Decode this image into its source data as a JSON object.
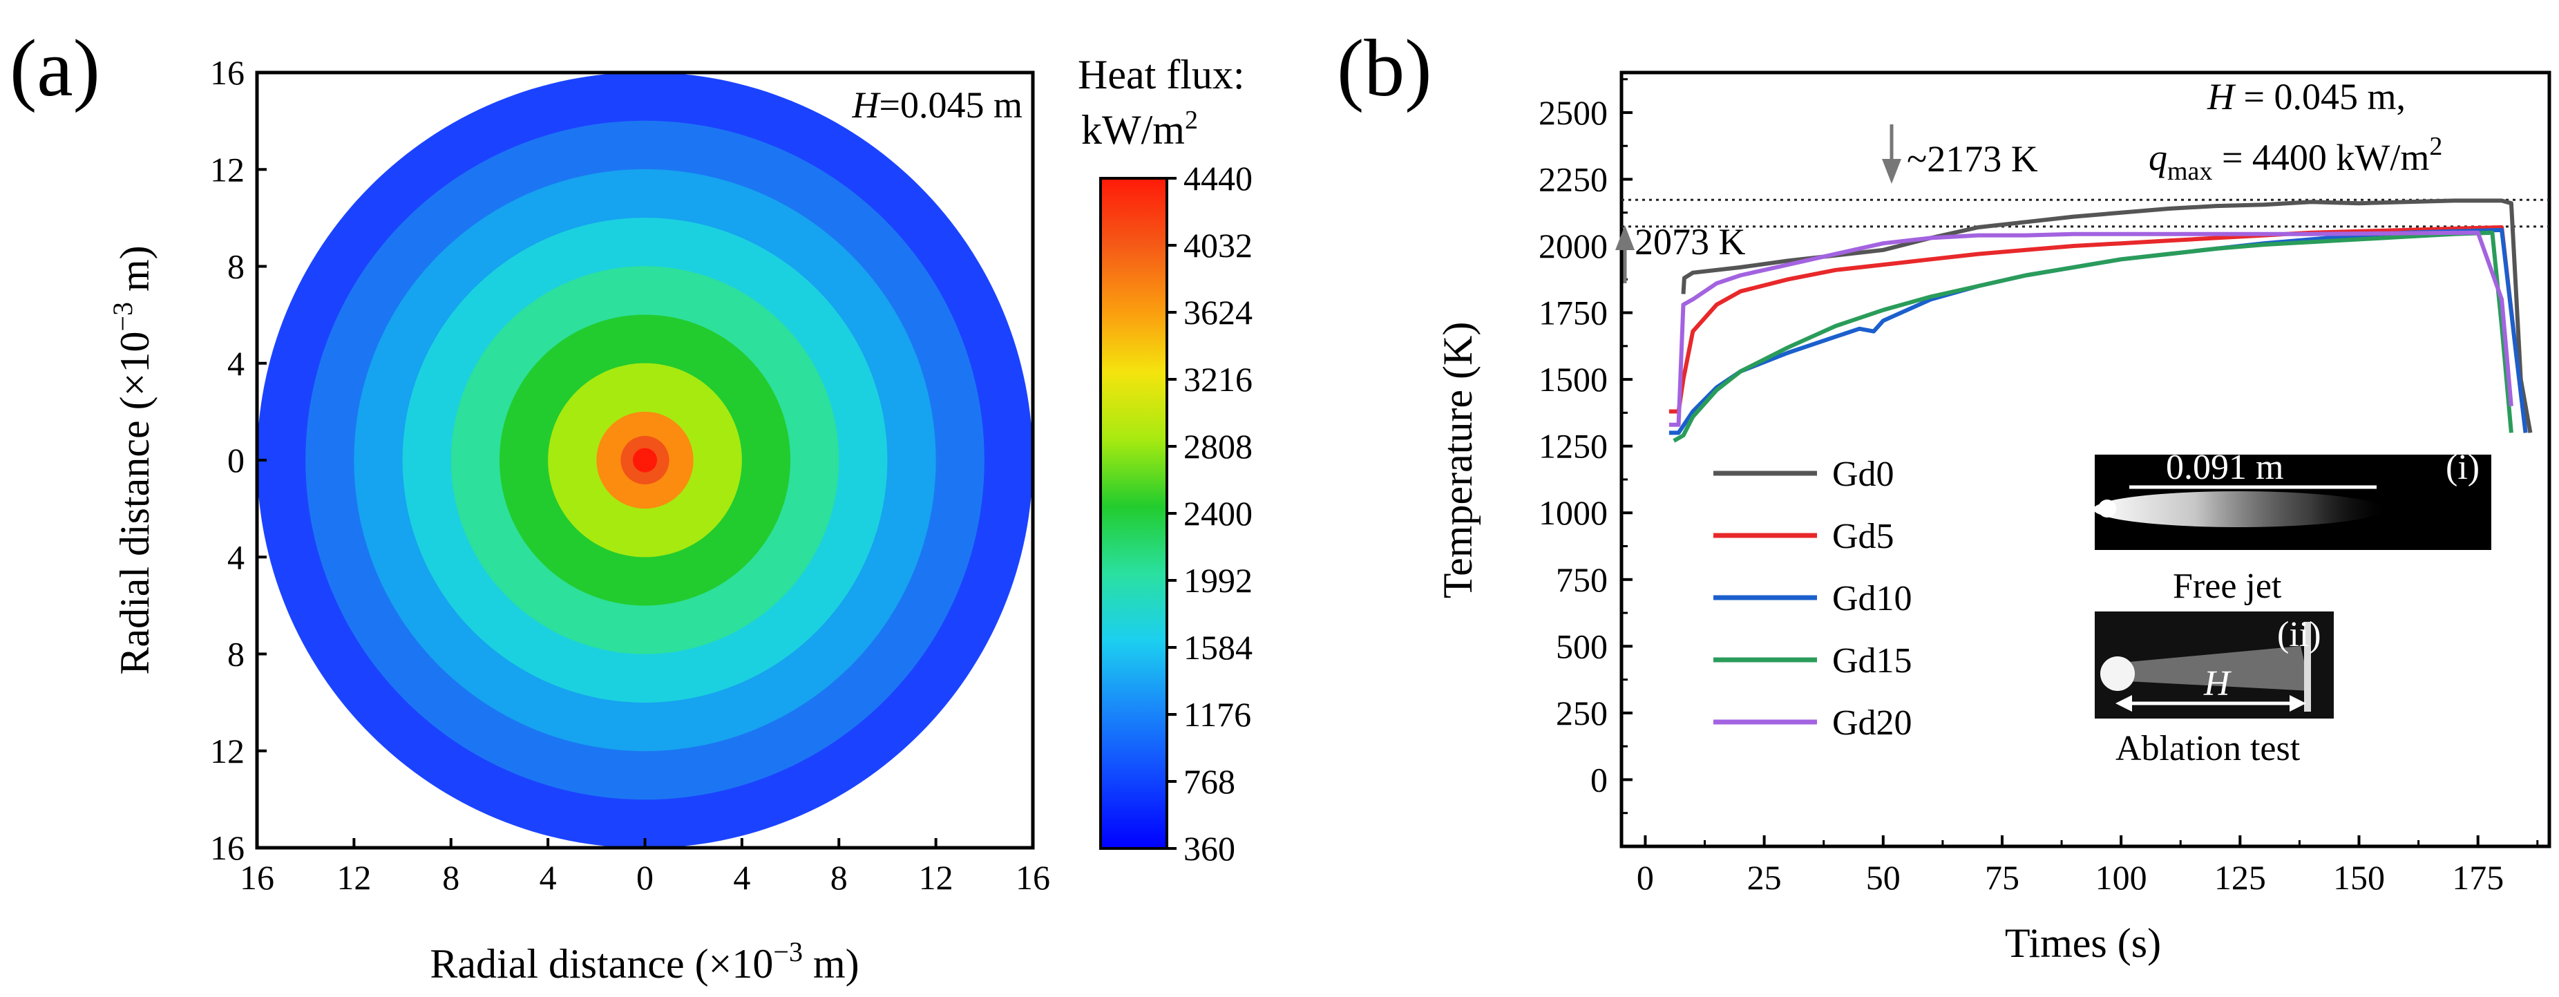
{
  "chart_data": [
    {
      "panel": "(a)",
      "type": "heatmap",
      "title": "",
      "xlabel": "Radial distance (×10⁻³ m)",
      "ylabel": "Radial distance (×10⁻³ m)",
      "x_ticks": [
        "16",
        "12",
        "8",
        "4",
        "0",
        "4",
        "8",
        "12",
        "16"
      ],
      "y_ticks": [
        "16",
        "12",
        "8",
        "4",
        "0",
        "4",
        "8",
        "12",
        "16"
      ],
      "xlim": [
        -16,
        16
      ],
      "ylim": [
        -16,
        16
      ],
      "annotation": "H=0.045 m",
      "annotation_italic": "H",
      "annotation_rest": "=0.045 m",
      "colorbar": {
        "title_line1": "Heat flux:",
        "title_line2": "kW/m",
        "title_sup": "2",
        "ticks": [
          "4440",
          "4032",
          "3624",
          "3216",
          "2808",
          "2400",
          "1992",
          "1584",
          "1176",
          "768",
          "360"
        ],
        "min": 360,
        "max": 4440
      },
      "contour_rings": [
        {
          "radius": 16,
          "value": 600,
          "color": "#1b43ff"
        },
        {
          "radius": 14,
          "value": 900,
          "color": "#1c76f3"
        },
        {
          "radius": 12,
          "value": 1180,
          "color": "#16a3f0"
        },
        {
          "radius": 10,
          "value": 1500,
          "color": "#1bd1df"
        },
        {
          "radius": 8,
          "value": 1900,
          "color": "#2de09b"
        },
        {
          "radius": 6,
          "value": 2400,
          "color": "#22cc2e"
        },
        {
          "radius": 4,
          "value": 3100,
          "color": "#a7ea10"
        },
        {
          "radius": 2,
          "value": 3900,
          "color": "#fb8c0f"
        },
        {
          "radius": 1,
          "value": 4250,
          "color": "#f25318"
        },
        {
          "radius": 0.5,
          "value": 4440,
          "color": "#ff1a08"
        }
      ]
    },
    {
      "panel": "(b)",
      "type": "line",
      "title": "",
      "xlabel": "Times (s)",
      "ylabel": "Temperature (K)",
      "x_ticks": [
        "0",
        "25",
        "50",
        "75",
        "100",
        "125",
        "150",
        "175"
      ],
      "y_ticks": [
        "0",
        "250",
        "500",
        "750",
        "1000",
        "1250",
        "1500",
        "1750",
        "2000",
        "2250",
        "2500"
      ],
      "xlim": [
        -5,
        190
      ],
      "ylim": [
        -250,
        2650
      ],
      "ref_lines": [
        2173,
        2073
      ],
      "annotation_2173": "~2173 K",
      "annotation_2073": "2073 K",
      "cond_line1_italic": "H",
      "cond_line1_rest": " = 0.045 m,",
      "cond_line2_q": "q",
      "cond_line2_sub": "max",
      "cond_line2_rest": " = 4400 kW/m",
      "cond_line2_sup": "2",
      "series": [
        {
          "name": "Gd0",
          "color": "#555555",
          "x": [
            8,
            8.2,
            10,
            20,
            30,
            40,
            50,
            60,
            70,
            80,
            90,
            100,
            110,
            120,
            130,
            140,
            150,
            160,
            170,
            180,
            182,
            184,
            186
          ],
          "y": [
            1820,
            1880,
            1900,
            1920,
            1945,
            1965,
            1985,
            2030,
            2070,
            2090,
            2110,
            2125,
            2140,
            2150,
            2155,
            2165,
            2160,
            2165,
            2170,
            2170,
            2160,
            1500,
            1300
          ]
        },
        {
          "name": "Gd5",
          "color": "#e8282a",
          "x": [
            5,
            7,
            8,
            10,
            15,
            20,
            30,
            40,
            50,
            60,
            70,
            80,
            90,
            100,
            110,
            120,
            130,
            140,
            150,
            160,
            170,
            180,
            183,
            185
          ],
          "y": [
            1380,
            1380,
            1500,
            1680,
            1780,
            1830,
            1875,
            1910,
            1930,
            1950,
            1970,
            1985,
            2000,
            2010,
            2020,
            2030,
            2040,
            2050,
            2055,
            2060,
            2065,
            2070,
            1600,
            1300
          ]
        },
        {
          "name": "Gd10",
          "color": "#1b5fcc",
          "x": [
            5,
            7,
            10,
            15,
            20,
            30,
            40,
            45,
            48,
            50,
            60,
            70,
            80,
            90,
            100,
            110,
            120,
            130,
            140,
            150,
            160,
            170,
            180,
            183,
            185
          ],
          "y": [
            1300,
            1300,
            1380,
            1470,
            1530,
            1600,
            1660,
            1690,
            1680,
            1720,
            1800,
            1850,
            1890,
            1920,
            1950,
            1970,
            1990,
            2010,
            2025,
            2040,
            2050,
            2055,
            2060,
            1600,
            1300
          ]
        },
        {
          "name": "Gd15",
          "color": "#2a9c5a",
          "x": [
            6,
            8,
            10,
            15,
            20,
            30,
            40,
            50,
            60,
            70,
            80,
            90,
            100,
            110,
            120,
            130,
            140,
            150,
            160,
            170,
            178,
            180,
            182
          ],
          "y": [
            1270,
            1290,
            1360,
            1460,
            1530,
            1620,
            1700,
            1760,
            1810,
            1850,
            1890,
            1920,
            1950,
            1970,
            1990,
            2005,
            2015,
            2025,
            2035,
            2045,
            2050,
            1700,
            1300
          ]
        },
        {
          "name": "Gd20",
          "color": "#a363e0",
          "x": [
            5,
            7,
            8,
            10,
            15,
            20,
            30,
            40,
            50,
            60,
            70,
            80,
            90,
            100,
            120,
            140,
            160,
            175,
            180,
            182
          ],
          "y": [
            1330,
            1330,
            1780,
            1800,
            1860,
            1890,
            1930,
            1970,
            2010,
            2030,
            2040,
            2040,
            2045,
            2045,
            2045,
            2045,
            2048,
            2050,
            1800,
            1400
          ]
        }
      ],
      "inset_i": {
        "label": "(i)",
        "scale_text": "0.091 m",
        "caption": "Free jet"
      },
      "inset_ii": {
        "label": "(ii)",
        "h_label": "H",
        "caption": "Ablation test"
      }
    }
  ],
  "panel_labels": {
    "a": "(a)",
    "b": "(b)"
  }
}
